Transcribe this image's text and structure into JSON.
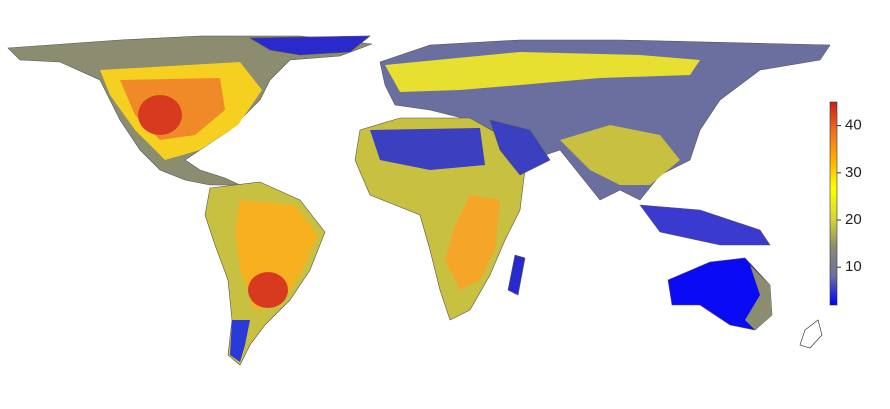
{
  "colorbar": {
    "lim": [
      2,
      45
    ],
    "ticks": [
      10,
      20,
      30,
      40
    ],
    "colors": [
      "#0000ff",
      "#6b6fa0",
      "#8c8c70",
      "#d8d830",
      "#ffff00",
      "#ffb000",
      "#f07020",
      "#c81e1e"
    ]
  }
}
